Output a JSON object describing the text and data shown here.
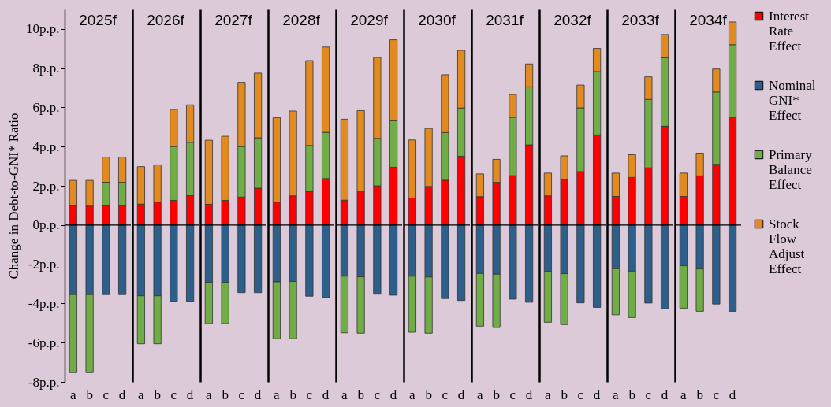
{
  "chart_data": [
    {
      "type": "bar",
      "stacked": true,
      "title": "2025f",
      "ylabel": "Change in Debt-to-GNI* Ratio",
      "categories": [
        "a",
        "b",
        "c",
        "d"
      ],
      "ylim": [
        -8,
        11
      ],
      "yticks": [
        {
          "value": -8,
          "label": "-8p.p."
        },
        {
          "value": -6,
          "label": "-6p.p."
        },
        {
          "value": -4,
          "label": "-4p.p."
        },
        {
          "value": -2,
          "label": "-2p.p."
        },
        {
          "value": 0,
          "label": "0p.p."
        },
        {
          "value": 2,
          "label": "2p.p."
        },
        {
          "value": 4,
          "label": "4p.p."
        },
        {
          "value": 6,
          "label": "6p.p."
        },
        {
          "value": 8,
          "label": "8p.p."
        },
        {
          "value": 10,
          "label": "10p.p."
        }
      ],
      "ref_lines": [
        {
          "axis": "y",
          "value": 0,
          "color": "#000000"
        }
      ],
      "series": [
        {
          "color": "#ff0000",
          "values": [
            0.98,
            0.97,
            0.98,
            0.98
          ]
        },
        {
          "color": "#2e5f8a",
          "values": [
            -3.55,
            -3.55,
            -3.55,
            -3.55
          ]
        },
        {
          "color": "#70ad47",
          "values": [
            -3.98,
            -3.98,
            1.2,
            1.2
          ]
        },
        {
          "color": "#e08a20",
          "values": [
            1.3,
            1.31,
            1.29,
            1.29
          ]
        }
      ]
    },
    {
      "type": "bar",
      "stacked": true,
      "title": "2026f",
      "tick_labels": "x",
      "categories": [
        "a",
        "b",
        "c",
        "d"
      ],
      "ylim": [
        -8,
        11
      ],
      "ref_lines": [
        {
          "axis": "y",
          "value": 0,
          "color": "#000000"
        }
      ],
      "series": [
        {
          "color": "#ff0000",
          "values": [
            1.07,
            1.17,
            1.26,
            1.5
          ]
        },
        {
          "color": "#2e5f8a",
          "values": [
            -3.61,
            -3.61,
            -3.89,
            -3.89
          ]
        },
        {
          "color": "#70ad47",
          "values": [
            -2.45,
            -2.45,
            2.75,
            2.72
          ]
        },
        {
          "color": "#e08a20",
          "values": [
            1.91,
            1.9,
            1.89,
            1.91
          ]
        }
      ]
    },
    {
      "type": "bar",
      "stacked": true,
      "title": "2027f",
      "tick_labels": "x",
      "categories": [
        "a",
        "b",
        "c",
        "d"
      ],
      "ylim": [
        -8,
        11
      ],
      "ref_lines": [
        {
          "axis": "y",
          "value": 0,
          "color": "#000000"
        }
      ],
      "series": [
        {
          "color": "#ff0000",
          "values": [
            1.06,
            1.26,
            1.43,
            1.88
          ]
        },
        {
          "color": "#2e5f8a",
          "values": [
            -2.92,
            -2.92,
            -3.45,
            -3.45
          ]
        },
        {
          "color": "#70ad47",
          "values": [
            -2.11,
            -2.11,
            2.58,
            2.57
          ]
        },
        {
          "color": "#e08a20",
          "values": [
            3.27,
            3.27,
            3.27,
            3.3
          ]
        }
      ]
    },
    {
      "type": "bar",
      "stacked": true,
      "title": "2028f",
      "tick_labels": "x",
      "categories": [
        "a",
        "b",
        "c",
        "d"
      ],
      "ylim": [
        -8,
        11
      ],
      "ref_lines": [
        {
          "axis": "y",
          "value": 0,
          "color": "#000000"
        }
      ],
      "series": [
        {
          "color": "#ff0000",
          "values": [
            1.17,
            1.49,
            1.72,
            2.37
          ]
        },
        {
          "color": "#2e5f8a",
          "values": [
            -2.9,
            -2.88,
            -3.63,
            -3.69
          ]
        },
        {
          "color": "#70ad47",
          "values": [
            -2.9,
            -2.92,
            2.34,
            2.36
          ]
        },
        {
          "color": "#e08a20",
          "values": [
            4.31,
            4.33,
            4.33,
            4.35
          ]
        }
      ]
    },
    {
      "type": "bar",
      "stacked": true,
      "title": "2029f",
      "tick_labels": "x",
      "categories": [
        "a",
        "b",
        "c",
        "d"
      ],
      "ylim": [
        -8,
        11
      ],
      "ref_lines": [
        {
          "axis": "y",
          "value": 0,
          "color": "#000000"
        }
      ],
      "series": [
        {
          "color": "#ff0000",
          "values": [
            1.27,
            1.7,
            2.0,
            2.95
          ]
        },
        {
          "color": "#2e5f8a",
          "values": [
            -2.61,
            -2.64,
            -3.53,
            -3.58
          ]
        },
        {
          "color": "#70ad47",
          "values": [
            -2.89,
            -2.88,
            2.42,
            2.37
          ]
        },
        {
          "color": "#e08a20",
          "values": [
            4.13,
            4.14,
            4.13,
            4.13
          ]
        }
      ]
    },
    {
      "type": "bar",
      "stacked": true,
      "title": "2030f",
      "tick_labels": "x",
      "categories": [
        "a",
        "b",
        "c",
        "d"
      ],
      "ylim": [
        -8,
        11
      ],
      "ref_lines": [
        {
          "axis": "y",
          "value": 0,
          "color": "#000000"
        }
      ],
      "series": [
        {
          "color": "#ff0000",
          "values": [
            1.38,
            1.97,
            2.29,
            3.51
          ]
        },
        {
          "color": "#2e5f8a",
          "values": [
            -2.61,
            -2.65,
            -3.75,
            -3.85
          ]
        },
        {
          "color": "#70ad47",
          "values": [
            -2.86,
            -2.87,
            2.43,
            2.46
          ]
        },
        {
          "color": "#e08a20",
          "values": [
            2.96,
            2.96,
            2.95,
            2.94
          ]
        }
      ]
    },
    {
      "type": "bar",
      "stacked": true,
      "title": "2031f",
      "tick_labels": "x",
      "categories": [
        "a",
        "b",
        "c",
        "d"
      ],
      "ylim": [
        -8,
        11
      ],
      "ref_lines": [
        {
          "axis": "y",
          "value": 0,
          "color": "#000000"
        }
      ],
      "series": [
        {
          "color": "#ff0000",
          "values": [
            1.45,
            2.18,
            2.52,
            4.09
          ]
        },
        {
          "color": "#2e5f8a",
          "values": [
            -2.47,
            -2.51,
            -3.78,
            -3.94
          ]
        },
        {
          "color": "#70ad47",
          "values": [
            -2.69,
            -2.72,
            2.98,
            2.96
          ]
        },
        {
          "color": "#e08a20",
          "values": [
            1.16,
            1.17,
            1.16,
            1.17
          ]
        }
      ]
    },
    {
      "type": "bar",
      "stacked": true,
      "title": "2032f",
      "tick_labels": "x",
      "categories": [
        "a",
        "b",
        "c",
        "d"
      ],
      "ylim": [
        -8,
        11
      ],
      "ref_lines": [
        {
          "axis": "y",
          "value": 0,
          "color": "#000000"
        }
      ],
      "series": [
        {
          "color": "#ff0000",
          "values": [
            1.49,
            2.33,
            2.73,
            4.6
          ]
        },
        {
          "color": "#2e5f8a",
          "values": [
            -2.37,
            -2.48,
            -3.97,
            -4.2
          ]
        },
        {
          "color": "#70ad47",
          "values": [
            -2.59,
            -2.6,
            3.25,
            3.23
          ]
        },
        {
          "color": "#e08a20",
          "values": [
            1.16,
            1.2,
            1.16,
            1.18
          ]
        }
      ]
    },
    {
      "type": "bar",
      "stacked": true,
      "title": "2033f",
      "tick_labels": "x",
      "categories": [
        "a",
        "b",
        "c",
        "d"
      ],
      "ylim": [
        -8,
        11
      ],
      "ref_lines": [
        {
          "axis": "y",
          "value": 0,
          "color": "#000000"
        }
      ],
      "series": [
        {
          "color": "#ff0000",
          "values": [
            1.46,
            2.43,
            2.92,
            5.04
          ]
        },
        {
          "color": "#2e5f8a",
          "values": [
            -2.23,
            -2.35,
            -3.98,
            -4.28
          ]
        },
        {
          "color": "#70ad47",
          "values": [
            -2.35,
            -2.37,
            3.49,
            3.49
          ]
        },
        {
          "color": "#e08a20",
          "values": [
            1.19,
            1.16,
            1.15,
            1.19
          ]
        }
      ]
    },
    {
      "type": "bar",
      "stacked": true,
      "title": "2034f",
      "tick_labels": "x",
      "legend": "right",
      "categories": [
        "a",
        "b",
        "c",
        "d"
      ],
      "ylim": [
        -8,
        11
      ],
      "ref_lines": [
        {
          "axis": "y",
          "value": 0,
          "color": "#000000"
        }
      ],
      "series": [
        {
          "name": "Interest Rate Effect",
          "color": "#ff0000",
          "values": [
            1.46,
            2.51,
            3.1,
            5.51
          ]
        },
        {
          "name": "Nominal GNI* Effect",
          "color": "#2e5f8a",
          "values": [
            -2.08,
            -2.24,
            -4.03,
            -4.4
          ]
        },
        {
          "name": "Primary Balance Effect",
          "color": "#70ad47",
          "values": [
            -2.16,
            -2.16,
            3.69,
            3.69
          ]
        },
        {
          "name": "Stock Flow Adjust Effect",
          "color": "#e08a20",
          "values": [
            1.19,
            1.16,
            1.17,
            1.16
          ]
        }
      ]
    }
  ]
}
